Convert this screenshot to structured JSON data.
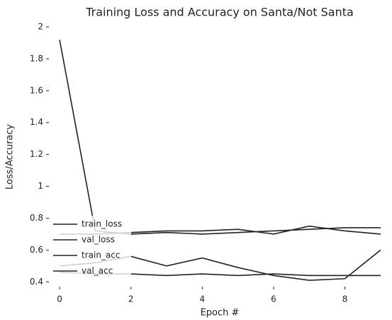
{
  "chart_data": {
    "type": "line",
    "title": "Training Loss and Accuracy on Santa/Not Santa",
    "x_label": "Epoch #",
    "y_label": "Loss/Accuracy",
    "x": [
      0,
      1,
      2,
      3,
      4,
      5,
      6,
      7,
      8,
      9
    ],
    "series": [
      {
        "name": "train_loss",
        "color": "#222222",
        "values": [
          1.92,
          0.72,
          0.7,
          0.71,
          0.7,
          0.71,
          0.72,
          0.73,
          0.74,
          0.74
        ]
      },
      {
        "name": "val_loss",
        "color": "#222222",
        "values": [
          0.7,
          0.7,
          0.71,
          0.72,
          0.72,
          0.73,
          0.7,
          0.75,
          0.72,
          0.7
        ]
      },
      {
        "name": "train_acc",
        "color": "#222222",
        "values": [
          0.5,
          0.52,
          0.56,
          0.5,
          0.55,
          0.49,
          0.44,
          0.41,
          0.42,
          0.6
        ]
      },
      {
        "name": "val_acc",
        "color": "#222222",
        "values": [
          0.46,
          0.45,
          0.45,
          0.44,
          0.45,
          0.44,
          0.45,
          0.44,
          0.44,
          0.44
        ]
      }
    ],
    "xlim": [
      -0.3,
      9.3
    ],
    "ylim": [
      0.37,
      2.0
    ],
    "xticks": [
      0,
      2,
      4,
      6,
      8
    ],
    "yticks": [
      0.4,
      0.6,
      0.8,
      1.0,
      1.2,
      1.4,
      1.6,
      1.8,
      2.0
    ],
    "legend": "lower left"
  }
}
